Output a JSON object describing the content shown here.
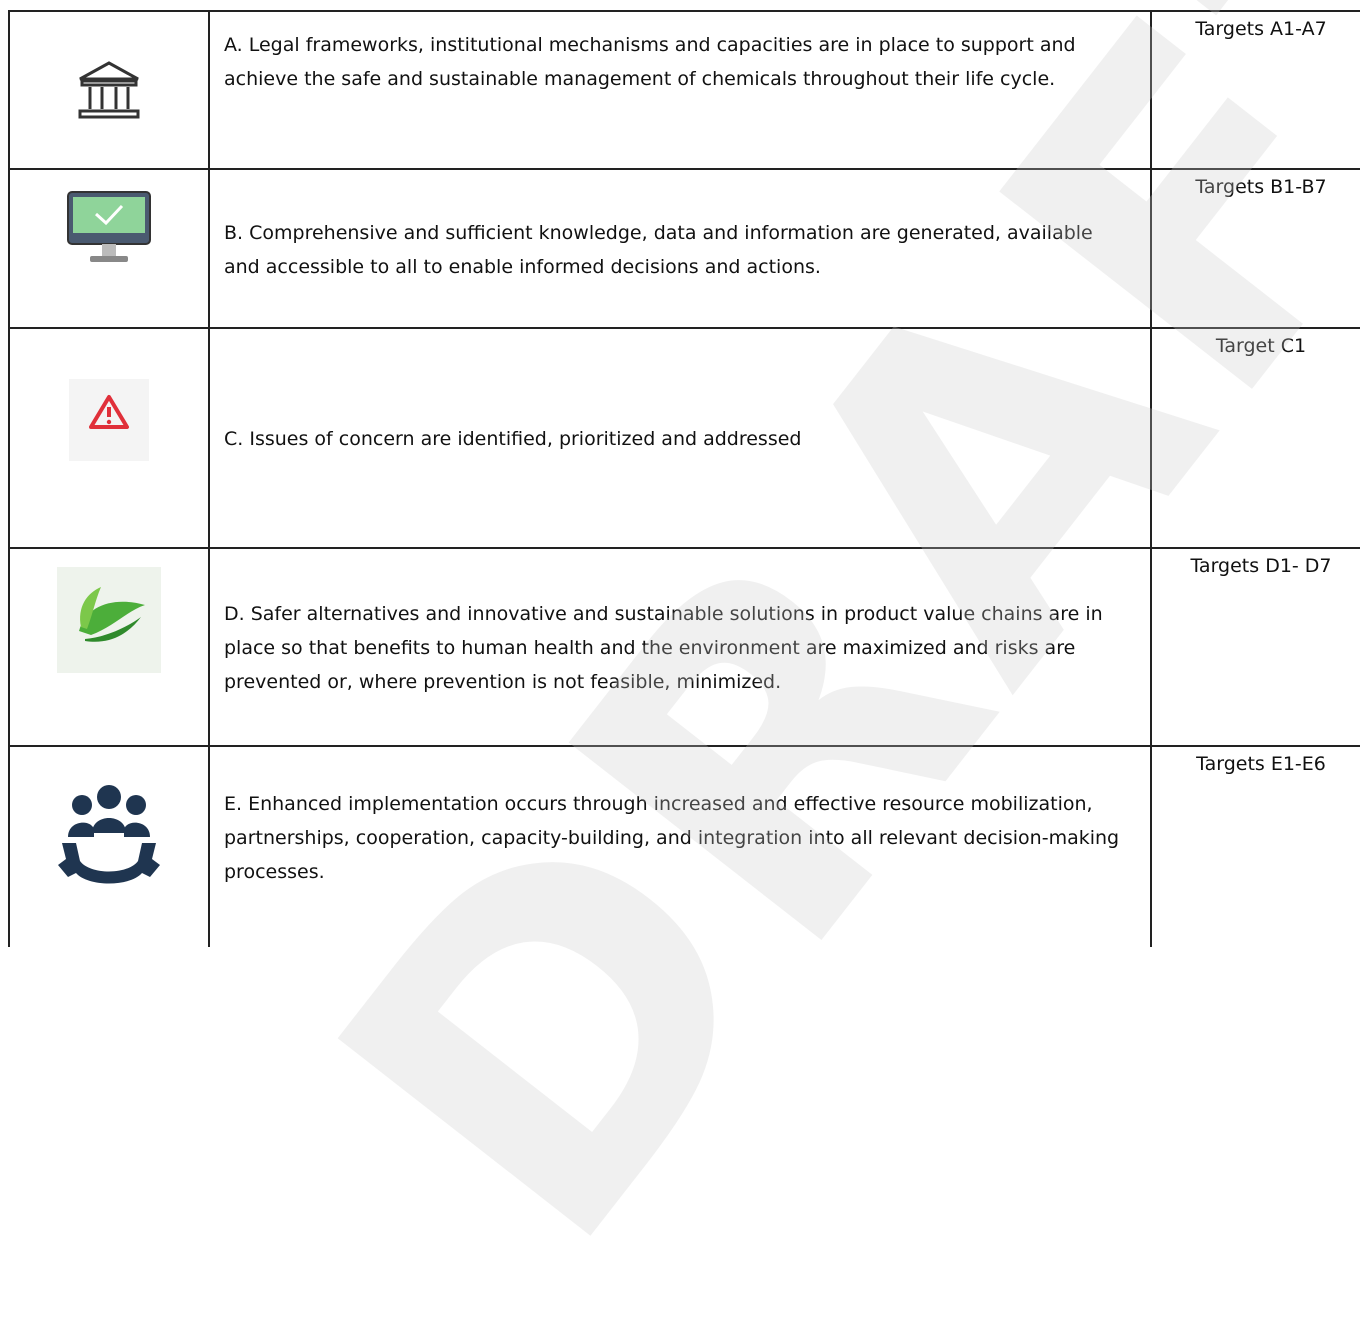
{
  "watermark": "DRAFT",
  "table": {
    "rows": [
      {
        "text": "A.  Legal frameworks, institutional mechanisms and capacities are in place to support and achieve the safe and sustainable management of chemicals throughout their life cycle.",
        "targets": "Targets A1-A7"
      },
      {
        "text": "B. Comprehensive and sufficient knowledge, data and information are generated, available and accessible to all to enable informed decisions and actions.",
        "targets": "Targets B1-B7"
      },
      {
        "text": "C. Issues of concern are identified, prioritized and addressed",
        "targets": "Target C1"
      },
      {
        "text": "D. Safer alternatives and innovative and sustainable solutions in product value chains are in place so that benefits to human health and the environment are maximized and risks are prevented or, where prevention is not feasible, minimized.",
        "targets": "Targets D1- D7"
      },
      {
        "text": "E. Enhanced implementation occurs through increased and effective resource mobilization, partnerships, cooperation, capacity-building, and integration into all relevant decision-making processes.",
        "targets": "Targets E1-E6"
      }
    ]
  }
}
